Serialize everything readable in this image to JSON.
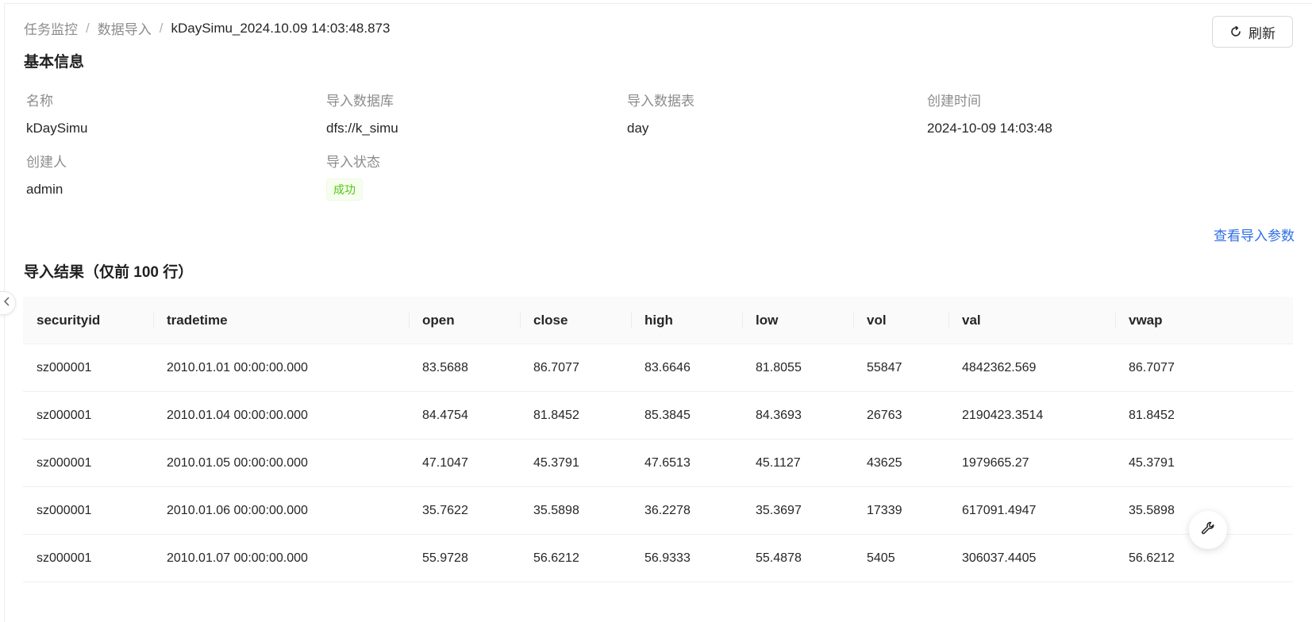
{
  "breadcrumb": {
    "items": [
      "任务监控",
      "数据导入"
    ],
    "separator": "/",
    "current": "kDaySimu_2024.10.09 14:03:48.873"
  },
  "toolbar": {
    "refresh_label": "刷新",
    "refresh_icon": "refresh-icon"
  },
  "basic_info": {
    "title": "基本信息",
    "fields": {
      "name_label": "名称",
      "name_value": "kDaySimu",
      "database_label": "导入数据库",
      "database_value": "dfs://k_simu",
      "table_label": "导入数据表",
      "table_value": "day",
      "created_label": "创建时间",
      "created_value": "2024-10-09 14:03:48",
      "creator_label": "创建人",
      "creator_value": "admin",
      "status_label": "导入状态",
      "status_value": "成功"
    },
    "status_color": "#52c41a"
  },
  "params_link": "查看导入参数",
  "results": {
    "title": "导入结果（仅前 100 行）",
    "columns": [
      "securityid",
      "tradetime",
      "open",
      "close",
      "high",
      "low",
      "vol",
      "val",
      "vwap"
    ],
    "rows": [
      [
        "sz000001",
        "2010.01.01 00:00:00.000",
        "83.5688",
        "86.7077",
        "83.6646",
        "81.8055",
        "55847",
        "4842362.569",
        "86.7077"
      ],
      [
        "sz000001",
        "2010.01.04 00:00:00.000",
        "84.4754",
        "81.8452",
        "85.3845",
        "84.3693",
        "26763",
        "2190423.3514",
        "81.8452"
      ],
      [
        "sz000001",
        "2010.01.05 00:00:00.000",
        "47.1047",
        "45.3791",
        "47.6513",
        "45.1127",
        "43625",
        "1979665.27",
        "45.3791"
      ],
      [
        "sz000001",
        "2010.01.06 00:00:00.000",
        "35.7622",
        "35.5898",
        "36.2278",
        "35.3697",
        "17339",
        "617091.4947",
        "35.5898"
      ],
      [
        "sz000001",
        "2010.01.07 00:00:00.000",
        "55.9728",
        "56.6212",
        "56.9333",
        "55.4878",
        "5405",
        "306037.4405",
        "56.6212"
      ]
    ]
  },
  "accent_color": "#2f6fe4"
}
